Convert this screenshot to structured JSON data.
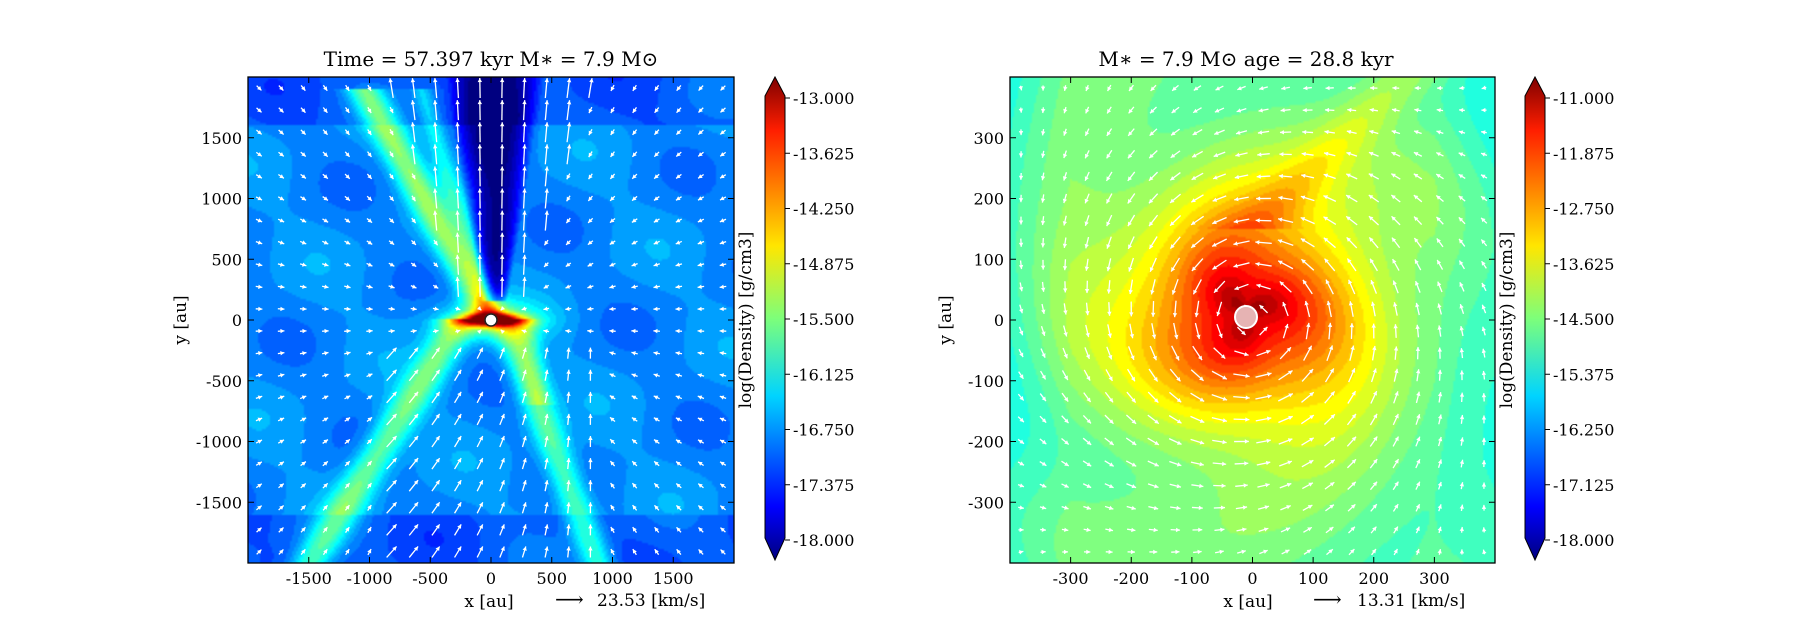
{
  "chart_data": [
    {
      "type": "heatmap",
      "title": "Time = 57.397 kyr    M∗ = 7.9 M⊙",
      "xlabel": "x [au]",
      "ylabel": "y [au]",
      "xlim": [
        -2000,
        2000
      ],
      "ylim": [
        -2000,
        2000
      ],
      "xticks": [
        -1500,
        -1000,
        -500,
        0,
        500,
        1000,
        1500
      ],
      "xtick_labels": [
        "-1500",
        "-1000",
        "-500",
        "0",
        "500",
        "1000",
        "1500"
      ],
      "yticks": [
        -1500,
        -1000,
        -500,
        0,
        500,
        1000,
        1500
      ],
      "ytick_labels": [
        "-1500",
        "-1000",
        "-500",
        "0",
        "500",
        "1000",
        "1500"
      ],
      "velocity_reference": {
        "arrow": "⟶",
        "label": "23.53 [km/s]"
      },
      "colorbar": {
        "label": "log(Density) [g/cm3]",
        "range": [
          -18.0,
          -13.0
        ],
        "ticks": [
          -13.0,
          -13.625,
          -14.25,
          -14.875,
          -15.5,
          -16.125,
          -16.75,
          -17.375,
          -18.0
        ],
        "tick_labels": [
          "-13.000",
          "-13.625",
          "-14.250",
          "-14.875",
          "-15.500",
          "-16.125",
          "-16.750",
          "-17.375",
          "-18.000"
        ]
      },
      "field": "outflow",
      "star": {
        "x": 0,
        "y": 0
      }
    },
    {
      "type": "heatmap",
      "title": "M∗ = 7.9 M⊙          age = 28.8 kyr",
      "xlabel": "x [au]",
      "ylabel": "y [au]",
      "xlim": [
        -400,
        400
      ],
      "ylim": [
        -400,
        400
      ],
      "xticks": [
        -300,
        -200,
        -100,
        0,
        100,
        200,
        300
      ],
      "xtick_labels": [
        "-300",
        "-200",
        "-100",
        "0",
        "100",
        "200",
        "300"
      ],
      "yticks": [
        -300,
        -200,
        -100,
        0,
        100,
        200,
        300
      ],
      "ytick_labels": [
        "-300",
        "-200",
        "-100",
        "0",
        "100",
        "200",
        "300"
      ],
      "velocity_reference": {
        "arrow": "⟶",
        "label": "13.31 [km/s]"
      },
      "colorbar": {
        "label": "log(Density) [g/cm3]",
        "range": [
          -18.0,
          -11.0
        ],
        "ticks": [
          -11.0,
          -11.875,
          -12.75,
          -13.625,
          -14.5,
          -15.375,
          -16.25,
          -17.125,
          -18.0
        ],
        "tick_labels": [
          "-11.000",
          "-11.875",
          "-12.750",
          "-13.625",
          "-14.500",
          "-15.375",
          "-16.250",
          "-17.125",
          "-18.000"
        ]
      },
      "field": "disk",
      "star": {
        "x": 0,
        "y": 0
      }
    }
  ]
}
